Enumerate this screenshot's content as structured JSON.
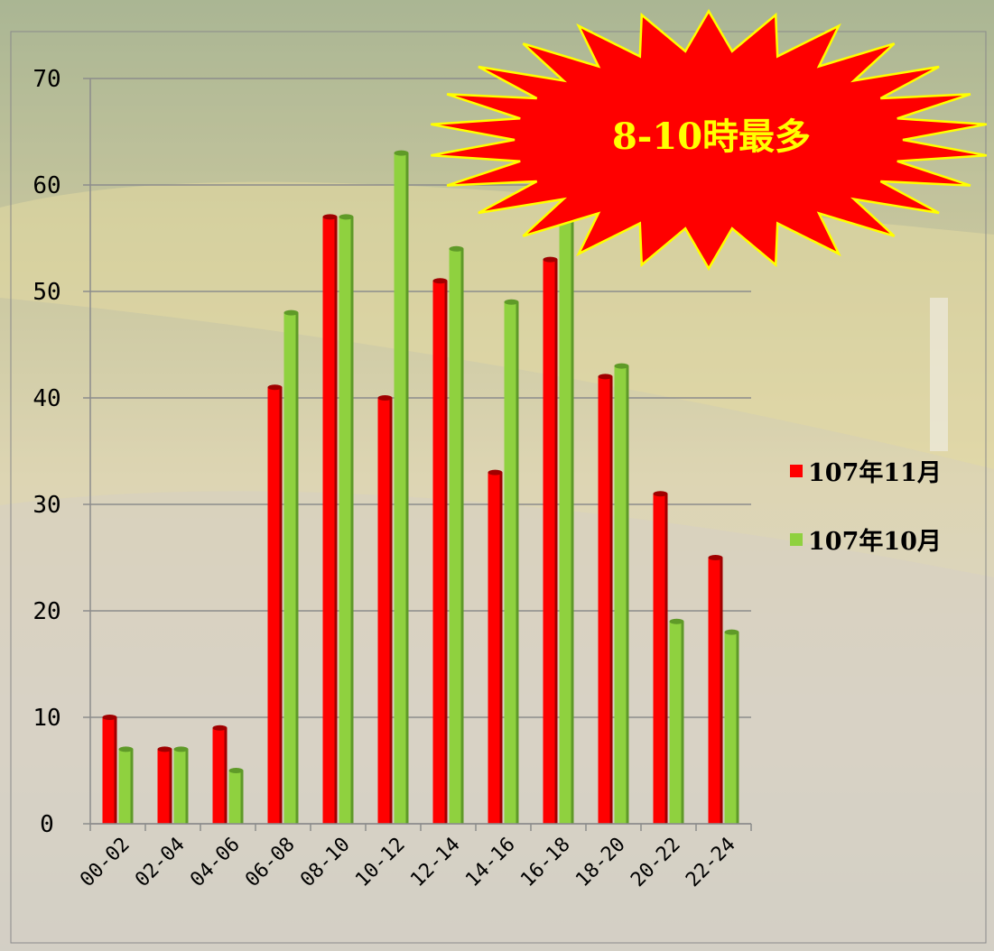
{
  "chart_data": {
    "type": "bar",
    "categories": [
      "00-02",
      "02-04",
      "04-06",
      "06-08",
      "08-10",
      "10-12",
      "12-14",
      "14-16",
      "16-18",
      "18-20",
      "20-22",
      "22-24"
    ],
    "series": [
      {
        "name": "107年11月",
        "color": "#ff0000",
        "values": [
          10,
          7,
          9,
          41,
          57,
          40,
          51,
          33,
          53,
          42,
          31,
          25
        ]
      },
      {
        "name": "107年10月",
        "color": "#8fd13f",
        "values": [
          7,
          7,
          5,
          48,
          57,
          63,
          54,
          49,
          57,
          43,
          19,
          18
        ]
      }
    ],
    "ylim": [
      0,
      70
    ],
    "yticks": [
      0,
      10,
      20,
      30,
      40,
      50,
      60,
      70
    ],
    "grid": true,
    "legend": "right",
    "annotation": "8-10時最多"
  }
}
